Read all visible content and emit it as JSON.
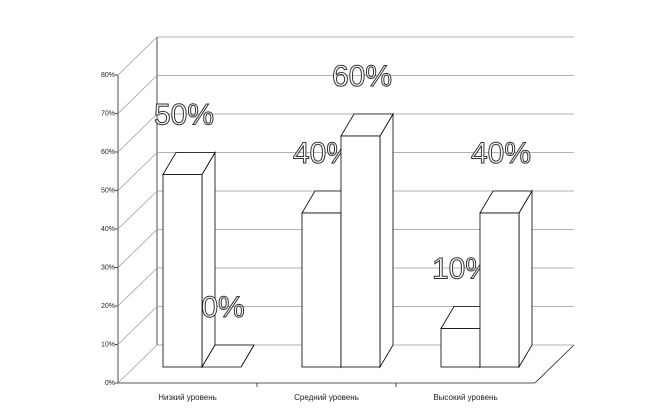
{
  "chart_data": {
    "type": "bar3d",
    "categories": [
      "Низкий уровень",
      "Средний уровень",
      "Высокий уровень"
    ],
    "series": [
      {
        "color": "#ffffff",
        "values": [
          50,
          40,
          10
        ],
        "value_labels": [
          "50%",
          "40%",
          "10%"
        ]
      },
      {
        "color": "#ffffff",
        "values": [
          0,
          60,
          40
        ],
        "value_labels": [
          "0%",
          "60%",
          "40%"
        ]
      }
    ],
    "ylim": [
      0,
      80
    ],
    "yticks": [
      {
        "value": 0,
        "label": "0%"
      },
      {
        "value": 10,
        "label": "10%"
      },
      {
        "value": 20,
        "label": "20%"
      },
      {
        "value": 30,
        "label": "30%"
      },
      {
        "value": 40,
        "label": "40%"
      },
      {
        "value": 50,
        "label": "50%"
      },
      {
        "value": 60,
        "label": "60%"
      },
      {
        "value": 70,
        "label": "70%"
      },
      {
        "value": 80,
        "label": "80%"
      }
    ],
    "grid": true
  }
}
